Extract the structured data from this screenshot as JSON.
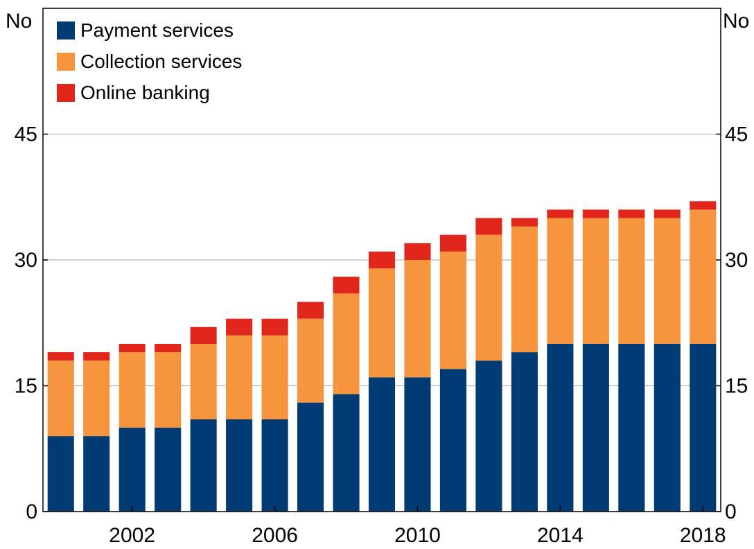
{
  "chart_data": {
    "type": "bar",
    "stacked": true,
    "title": "",
    "xlabel": "",
    "ylabel": "No",
    "ylabel_right": "No",
    "ylim": [
      0,
      60
    ],
    "y_ticks": [
      0,
      15,
      30,
      45
    ],
    "y_tick_labels": [
      "0",
      "15",
      "30",
      "45"
    ],
    "x_ticks": [
      2002,
      2006,
      2010,
      2014,
      2018
    ],
    "x_tick_labels": [
      "2002",
      "2006",
      "2010",
      "2014",
      "2018"
    ],
    "grid": true,
    "legend_position": "top-left",
    "categories": [
      2000,
      2001,
      2002,
      2003,
      2004,
      2005,
      2006,
      2007,
      2008,
      2009,
      2010,
      2011,
      2012,
      2013,
      2014,
      2015,
      2016,
      2017,
      2018
    ],
    "series": [
      {
        "name": "Payment services",
        "color": "#003b73",
        "values": [
          9,
          9,
          10,
          10,
          11,
          11,
          11,
          13,
          14,
          16,
          16,
          17,
          18,
          19,
          20,
          20,
          20,
          20,
          20
        ]
      },
      {
        "name": "Collection services",
        "color": "#f7943e",
        "values": [
          9,
          9,
          9,
          9,
          9,
          10,
          10,
          10,
          12,
          13,
          14,
          14,
          15,
          15,
          15,
          15,
          15,
          15,
          16
        ]
      },
      {
        "name": "Online banking",
        "color": "#e1261c",
        "values": [
          1,
          1,
          1,
          1,
          2,
          2,
          2,
          2,
          2,
          2,
          2,
          2,
          2,
          1,
          1,
          1,
          1,
          1,
          1
        ]
      }
    ]
  }
}
